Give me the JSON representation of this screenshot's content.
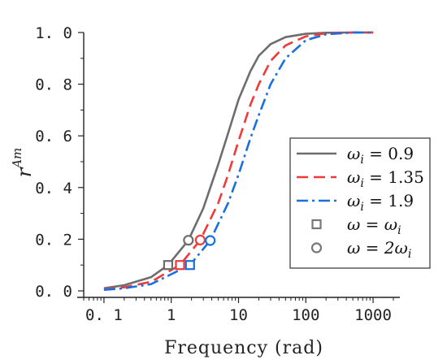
{
  "chart_data": {
    "type": "line",
    "xlabel": "Frequency (rad)",
    "ylabel_base": "r",
    "ylabel_sup": "Am",
    "x_scale": "log",
    "xlim": [
      0.05,
      2500
    ],
    "ylim": [
      0,
      1.0
    ],
    "x_ticks": [
      0.1,
      1,
      10,
      100,
      1000
    ],
    "x_tick_labels": [
      "0. 1",
      "1",
      "10",
      "100",
      "1000"
    ],
    "y_ticks": [
      0.0,
      0.2,
      0.4,
      0.6,
      0.8,
      1.0
    ],
    "y_tick_labels": [
      "0. 0",
      "0. 2",
      "0. 4",
      "0. 6",
      "0. 8",
      "1. 0"
    ],
    "series": [
      {
        "name": "ω_i = 0.9",
        "label_lhs": "ω",
        "label_sub": "i",
        "label_rhs": "= 0.9",
        "color": "#6d6d6d",
        "dash": "solid",
        "x": [
          0.1,
          0.2,
          0.5,
          0.9,
          1.8,
          3,
          5,
          7,
          10,
          15,
          20,
          30,
          50,
          100,
          200,
          500,
          1000
        ],
        "y": [
          0.01,
          0.022,
          0.053,
          0.1,
          0.196,
          0.32,
          0.49,
          0.61,
          0.74,
          0.85,
          0.91,
          0.955,
          0.982,
          0.995,
          0.999,
          1.0,
          1.0
        ]
      },
      {
        "name": "ω_i = 1.35",
        "label_lhs": "ω",
        "label_sub": "i",
        "label_rhs": "= 1.35",
        "color": "#f03a3a",
        "dash": "dashed",
        "x": [
          0.1,
          0.2,
          0.5,
          1.35,
          2.7,
          5,
          7,
          10,
          15,
          20,
          30,
          50,
          100,
          200,
          500,
          1000
        ],
        "y": [
          0.006,
          0.014,
          0.035,
          0.1,
          0.197,
          0.34,
          0.45,
          0.58,
          0.72,
          0.8,
          0.89,
          0.95,
          0.985,
          0.997,
          1.0,
          1.0
        ]
      },
      {
        "name": "ω_i = 1.9",
        "label_lhs": "ω",
        "label_sub": "i",
        "label_rhs": "= 1.9",
        "color": "#1a6fe0",
        "dash": "dashdot",
        "x": [
          0.1,
          0.2,
          0.5,
          1.9,
          3.8,
          7,
          10,
          15,
          20,
          30,
          50,
          100,
          200,
          500,
          1000
        ],
        "y": [
          0.004,
          0.01,
          0.026,
          0.1,
          0.195,
          0.34,
          0.45,
          0.59,
          0.68,
          0.8,
          0.9,
          0.97,
          0.993,
          1.0,
          1.0
        ]
      }
    ],
    "markers": [
      {
        "name": "ω = ω_i",
        "label_lhs": "ω",
        "label_rhs": "= ω",
        "label_sub": "i",
        "shape": "square",
        "legend_color": "#777777",
        "points": [
          {
            "x": 0.9,
            "y": 0.1,
            "color": "#6d6d6d"
          },
          {
            "x": 1.35,
            "y": 0.1,
            "color": "#f03a3a"
          },
          {
            "x": 1.9,
            "y": 0.1,
            "color": "#1a6fe0"
          }
        ]
      },
      {
        "name": "ω = 2ω_i",
        "label_lhs": "ω",
        "label_rhs": "= 2ω",
        "label_sub": "i",
        "shape": "circle",
        "legend_color": "#777777",
        "points": [
          {
            "x": 1.8,
            "y": 0.196,
            "color": "#6d6d6d"
          },
          {
            "x": 2.7,
            "y": 0.197,
            "color": "#f03a3a"
          },
          {
            "x": 3.8,
            "y": 0.195,
            "color": "#1a6fe0"
          }
        ]
      }
    ],
    "legend_position": "center-right",
    "grid": false
  }
}
